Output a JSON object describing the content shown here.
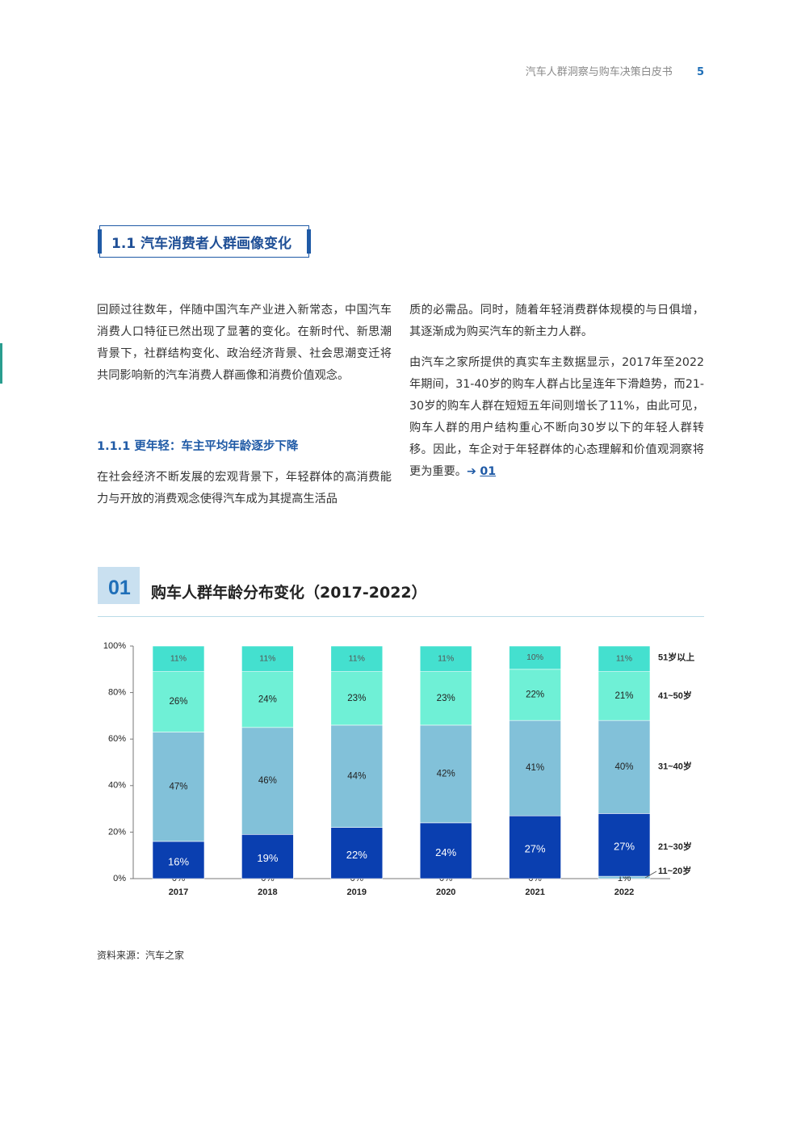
{
  "header": {
    "title": "汽车人群洞察与购车决策白皮书",
    "page_number": "5"
  },
  "section": {
    "title": "1.1 汽车消费者人群画像变化"
  },
  "left_column": {
    "para1": "回顾过往数年，伴随中国汽车产业进入新常态，中国汽车消费人口特征已然出现了显著的变化。在新时代、新思潮背景下，社群结构变化、政治经济背景、社会思潮变迁将共同影响新的汽车消费人群画像和消费价值观念。",
    "subheading": "1.1.1 更年轻：车主平均年龄逐步下降",
    "para2": "在社会经济不断发展的宏观背景下，年轻群体的高消费能力与开放的消费观念使得汽车成为其提高生活品"
  },
  "right_column": {
    "para1": "质的必需品。同时，随着年轻消费群体规模的与日俱增，其逐渐成为购买汽车的新主力人群。",
    "para2": "由汽车之家所提供的真实车主数据显示，2017年至2022年期间，31-40岁的购车人群占比呈连年下滑趋势，而21-30岁的购车人群在短短五年间则增长了11%，由此可见，购车人群的用户结构重心不断向30岁以下的年轻人群转移。因此，车企对于年轻群体的心态理解和价值观洞察将更为重要。",
    "arrow": "➔",
    "ref": "01"
  },
  "figure": {
    "number": "01",
    "title": "购车人群年龄分布变化（2017-2022）"
  },
  "source": "资料来源：汽车之家",
  "colors": {
    "s1120": "#7fc1da",
    "s2130": "#0a3fb0",
    "s3140": "#82c1d9",
    "s4150": "#6ff0d6",
    "s51": "#44e0cf"
  },
  "chart_data": {
    "type": "bar",
    "stacked": true,
    "categories": [
      "2017",
      "2018",
      "2019",
      "2020",
      "2021",
      "2022"
    ],
    "ylim": [
      0,
      100
    ],
    "yticks": [
      "0%",
      "20%",
      "40%",
      "60%",
      "80%",
      "100%"
    ],
    "legend_placement": "right",
    "series": [
      {
        "name": "11~20岁",
        "values": [
          0,
          0,
          0,
          0,
          0,
          1
        ],
        "labels": [
          "0%",
          "0%",
          "0%",
          "0%",
          "0%",
          "1%"
        ]
      },
      {
        "name": "21~30岁",
        "values": [
          16,
          19,
          22,
          24,
          27,
          27
        ],
        "labels": [
          "16%",
          "19%",
          "22%",
          "24%",
          "27%",
          "27%"
        ]
      },
      {
        "name": "31~40岁",
        "values": [
          47,
          46,
          44,
          42,
          41,
          40
        ],
        "labels": [
          "47%",
          "46%",
          "44%",
          "42%",
          "41%",
          "40%"
        ]
      },
      {
        "name": "41~50岁",
        "values": [
          26,
          24,
          23,
          23,
          22,
          21
        ],
        "labels": [
          "26%",
          "24%",
          "23%",
          "23%",
          "22%",
          "21%"
        ]
      },
      {
        "name": "51岁以上",
        "values": [
          11,
          11,
          11,
          11,
          10,
          11
        ],
        "labels": [
          "11%",
          "11%",
          "11%",
          "11%",
          "10%",
          "11%"
        ]
      }
    ]
  }
}
